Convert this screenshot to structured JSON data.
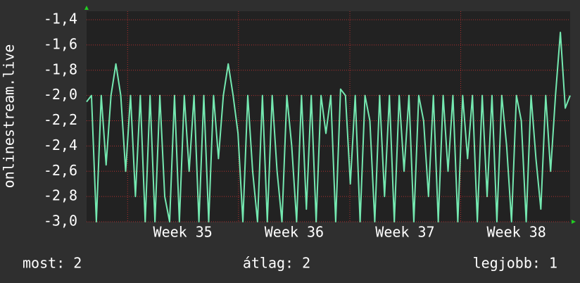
{
  "chart_data": {
    "type": "line",
    "ylabel": "onlinestream.live",
    "color": "#74e8b0",
    "grid": true,
    "xlim": [
      0,
      99
    ],
    "xticks": [
      {
        "value": 19.7,
        "label": "Week 35"
      },
      {
        "value": 42.5,
        "label": "Week 36"
      },
      {
        "value": 65.2,
        "label": "Week 37"
      },
      {
        "value": 88.0,
        "label": "Week 38"
      }
    ],
    "xgrid": [
      8.4,
      31.1,
      53.9,
      76.6
    ],
    "ylim": [
      -3.0,
      -1.333
    ],
    "yticks": [
      {
        "value": -1.4,
        "label": "-1,4"
      },
      {
        "value": -1.6,
        "label": "-1,6"
      },
      {
        "value": -1.8,
        "label": "-1,8"
      },
      {
        "value": -2.0,
        "label": "-2,0"
      },
      {
        "value": -2.2,
        "label": "-2,2"
      },
      {
        "value": -2.4,
        "label": "-2,4"
      },
      {
        "value": -2.6,
        "label": "-2,6"
      },
      {
        "value": -2.8,
        "label": "-2,8"
      },
      {
        "value": -3.0,
        "label": "-3,0"
      }
    ],
    "values": [
      -2.05,
      -2.0,
      -3.0,
      -2.0,
      -2.55,
      -2.0,
      -1.75,
      -2.0,
      -2.6,
      -2.0,
      -2.8,
      -2.0,
      -3.0,
      -2.0,
      -3.0,
      -2.0,
      -2.8,
      -3.0,
      -2.0,
      -3.0,
      -2.0,
      -2.6,
      -2.0,
      -3.0,
      -2.0,
      -3.0,
      -2.0,
      -2.5,
      -2.0,
      -1.75,
      -2.0,
      -2.3,
      -3.0,
      -2.0,
      -2.6,
      -3.0,
      -2.0,
      -3.0,
      -2.0,
      -2.6,
      -3.0,
      -2.0,
      -2.4,
      -3.0,
      -2.0,
      -2.9,
      -2.0,
      -3.0,
      -2.0,
      -2.3,
      -2.0,
      -3.0,
      -1.95,
      -2.0,
      -2.7,
      -2.0,
      -3.0,
      -2.0,
      -2.2,
      -3.0,
      -2.0,
      -2.8,
      -2.0,
      -3.0,
      -2.0,
      -2.6,
      -2.0,
      -3.0,
      -2.0,
      -2.2,
      -2.8,
      -2.0,
      -3.0,
      -2.0,
      -2.6,
      -2.0,
      -3.0,
      -2.0,
      -2.5,
      -2.0,
      -3.0,
      -2.0,
      -2.8,
      -2.0,
      -3.0,
      -2.0,
      -2.4,
      -3.0,
      -2.0,
      -2.2,
      -3.0,
      -2.0,
      -2.5,
      -2.9,
      -2.0,
      -2.6,
      -2.0,
      -1.5,
      -2.1,
      -2.0
    ],
    "footer": [
      "most: 2",
      "átlag: 2",
      "legjobb: 1"
    ]
  }
}
